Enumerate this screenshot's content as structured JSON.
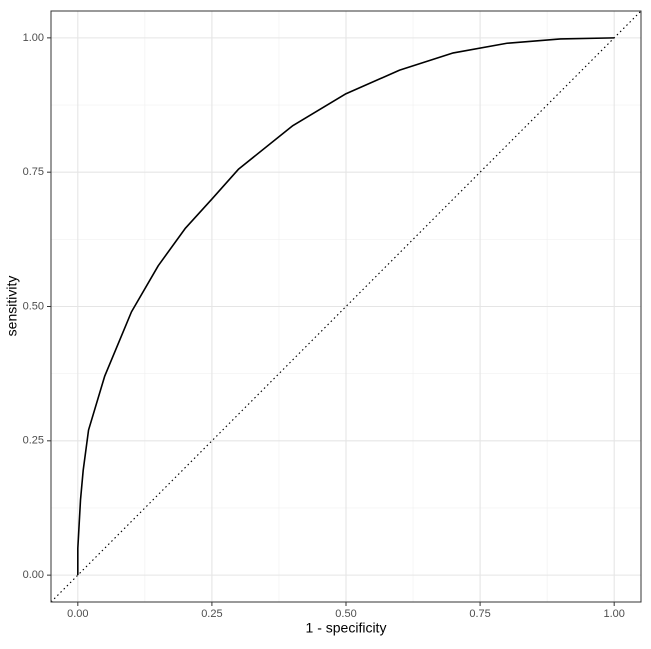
{
  "chart_data": {
    "type": "line",
    "xlabel": "1 - specificity",
    "ylabel": "sensitivity",
    "x": [
      0,
      0,
      0.005,
      0.01,
      0.02,
      0.05,
      0.1,
      0.15,
      0.2,
      0.25,
      0.3,
      0.4,
      0.5,
      0.6,
      0.7,
      0.8,
      0.9,
      1.0
    ],
    "values": [
      0,
      0.05,
      0.14,
      0.195,
      0.27,
      0.37,
      0.49,
      0.576,
      0.645,
      0.7,
      0.756,
      0.836,
      0.896,
      0.94,
      0.972,
      0.99,
      0.998,
      1.0
    ],
    "color": "#000000",
    "xlim": [
      -0.05,
      1.05
    ],
    "ylim": [
      -0.05,
      1.05
    ],
    "xticks": [
      {
        "value": 0,
        "label": "0.00"
      },
      {
        "value": 0.25,
        "label": "0.25"
      },
      {
        "value": 0.5,
        "label": "0.50"
      },
      {
        "value": 0.75,
        "label": "0.75"
      },
      {
        "value": 1,
        "label": "1.00"
      }
    ],
    "yticks": [
      {
        "value": 0,
        "label": "0.00"
      },
      {
        "value": 0.25,
        "label": "0.25"
      },
      {
        "value": 0.5,
        "label": "0.50"
      },
      {
        "value": 0.75,
        "label": "0.75"
      },
      {
        "value": 1,
        "label": "1.00"
      }
    ],
    "x_minor_ticks": [
      0.125,
      0.375,
      0.625,
      0.875
    ],
    "y_minor_ticks": [
      0.125,
      0.375,
      0.625,
      0.875
    ],
    "abline": {
      "intercept": 0,
      "slope": 1,
      "linetype": "dotted"
    },
    "grid": true
  }
}
